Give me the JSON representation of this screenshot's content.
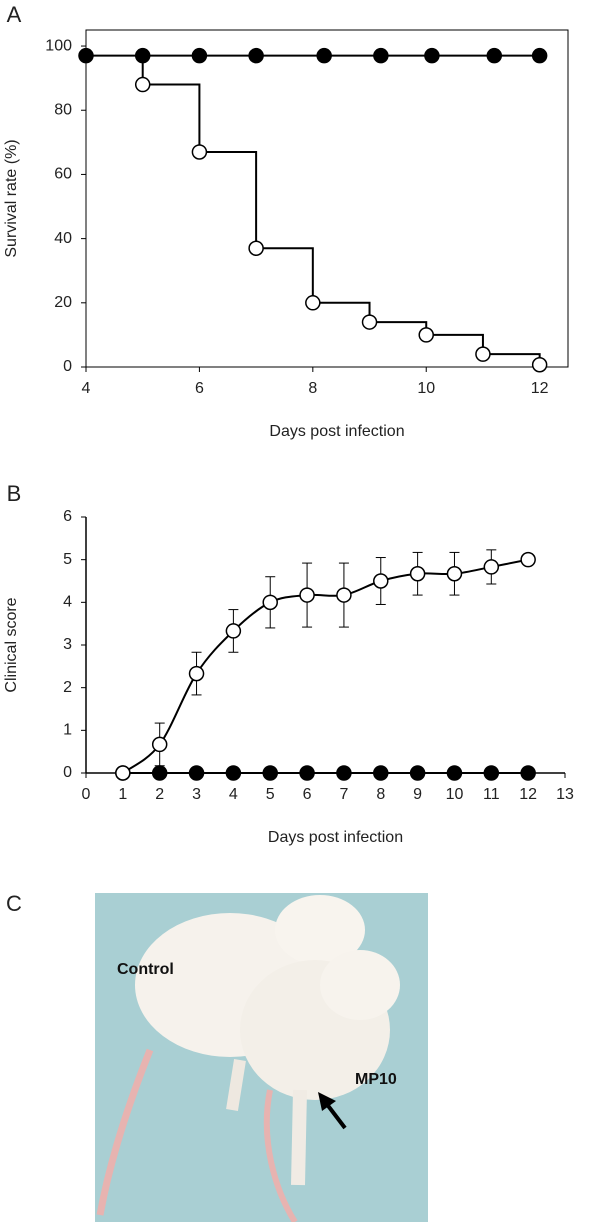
{
  "chart_data": [
    {
      "type": "line",
      "panel_label": "A",
      "x_label": "Days post infection",
      "y_label": "Survival rate (%)",
      "xlim": [
        4,
        12.5
      ],
      "ylim": [
        0,
        105
      ],
      "xticks": [
        4,
        6,
        8,
        10,
        12
      ],
      "yticks": [
        0,
        20,
        40,
        60,
        80,
        100
      ],
      "frame": true,
      "step": true,
      "series": [
        {
          "color": "#000000",
          "x": [
            4,
            5,
            6,
            7,
            8.2,
            9.2,
            10.1,
            11.2,
            12
          ],
          "values": [
            97,
            97,
            97,
            97,
            97,
            97,
            97,
            97,
            97
          ]
        },
        {
          "color": "#ffffff",
          "x": [
            5,
            6,
            7,
            8,
            9,
            10,
            11,
            12
          ],
          "values": [
            88,
            67,
            37,
            20,
            14,
            10,
            4,
            0.7
          ]
        }
      ]
    },
    {
      "type": "line",
      "panel_label": "B",
      "x_label": "Days post infection",
      "y_label": "Clinical score",
      "xlim": [
        0,
        13
      ],
      "ylim": [
        0,
        6
      ],
      "xticks": [
        0,
        1,
        2,
        3,
        4,
        5,
        6,
        7,
        8,
        9,
        10,
        11,
        12,
        13
      ],
      "yticks": [
        0,
        1,
        2,
        3,
        4,
        5,
        6
      ],
      "frame": false,
      "step": false,
      "series": [
        {
          "color": "#000000",
          "x": [
            1,
            2,
            3,
            4,
            5,
            6,
            7,
            8,
            9,
            10,
            11,
            12
          ],
          "values": [
            0,
            0,
            0,
            0,
            0,
            0,
            0,
            0,
            0,
            0,
            0,
            0
          ]
        },
        {
          "color": "#ffffff",
          "x": [
            1,
            2,
            3,
            4,
            5,
            6,
            7,
            8,
            9,
            10,
            11,
            12
          ],
          "values": [
            0,
            0.67,
            2.33,
            3.33,
            4,
            4.17,
            4.17,
            4.5,
            4.67,
            4.67,
            4.83,
            5
          ],
          "errors": [
            0,
            0.5,
            0.5,
            0.5,
            0.6,
            0.75,
            0.75,
            0.55,
            0.5,
            0.5,
            0.4,
            0
          ]
        }
      ]
    }
  ],
  "photo": {
    "panel_label": "C",
    "labels": [
      "Control",
      "MP10"
    ]
  }
}
